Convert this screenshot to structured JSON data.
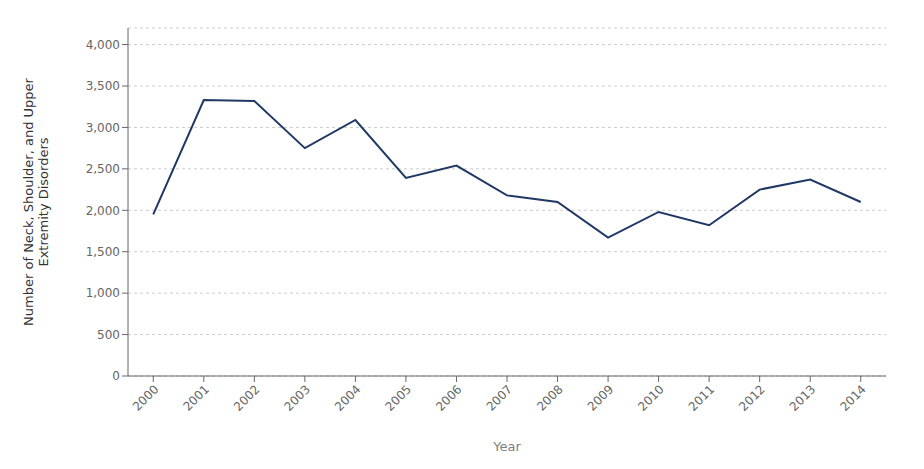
{
  "chart_data": {
    "type": "line",
    "x": [
      2000,
      2001,
      2002,
      2003,
      2004,
      2005,
      2006,
      2007,
      2008,
      2009,
      2010,
      2011,
      2012,
      2013,
      2014
    ],
    "values": [
      1950,
      3330,
      3320,
      2750,
      3090,
      2390,
      2540,
      2180,
      2100,
      1670,
      1980,
      1820,
      2250,
      2370,
      2100
    ],
    "color": "#1F3864",
    "xlabel": "Year",
    "ylabel": "Number of Neck, Shoulder, and Upper\nExtremity Disorders",
    "xlim": [
      1999.5,
      2014.5
    ],
    "xticks": [
      2000,
      2001,
      2002,
      2003,
      2004,
      2005,
      2006,
      2007,
      2008,
      2009,
      2010,
      2011,
      2012,
      2013,
      2014
    ],
    "ylim": [
      0,
      4200
    ],
    "yticks": [
      0,
      500,
      {
        "value": 1000,
        "label": "1,000"
      },
      {
        "value": 1500,
        "label": "1,500"
      },
      {
        "value": 2000,
        "label": "2,000"
      },
      {
        "value": 2500,
        "label": "2,500"
      },
      {
        "value": 3000,
        "label": "3,000"
      },
      {
        "value": 3500,
        "label": "3,500"
      },
      {
        "value": 4000,
        "label": "4,000"
      }
    ],
    "grid": true
  }
}
